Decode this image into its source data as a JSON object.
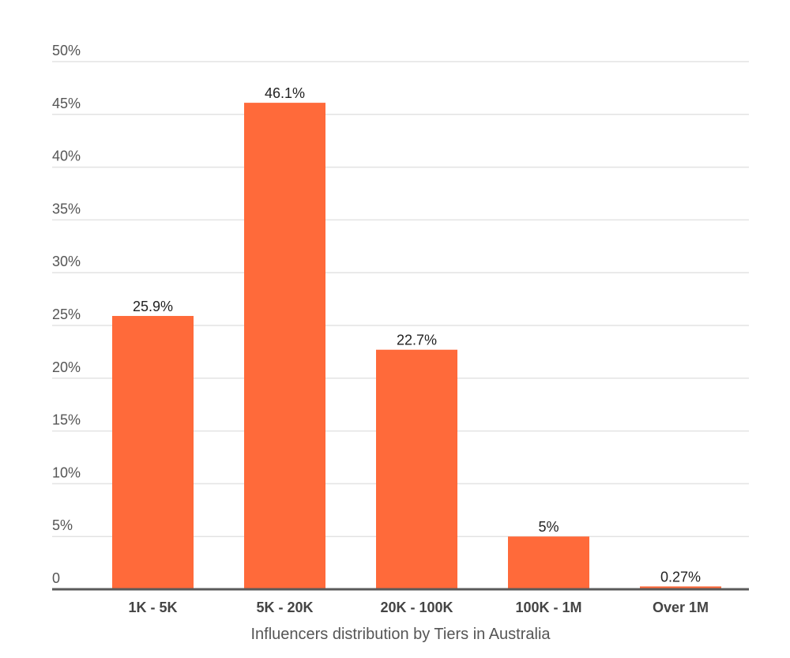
{
  "chart_data": {
    "type": "bar",
    "categories": [
      "1K - 5K",
      "5K - 20K",
      "20K - 100K",
      "100K - 1M",
      "Over 1M"
    ],
    "values": [
      25.9,
      46.1,
      22.7,
      5,
      0.27
    ],
    "data_labels": [
      "25.9%",
      "46.1%",
      "22.7%",
      "5%",
      "0.27%"
    ],
    "title": "",
    "xlabel": "Influencers distribution by Tiers in Australia",
    "ylabel": "",
    "ylim": [
      0,
      50
    ],
    "yticks": [
      0,
      5,
      10,
      15,
      20,
      25,
      30,
      35,
      40,
      45,
      50
    ],
    "ytick_labels": [
      "0",
      "5%",
      "10%",
      "15%",
      "20%",
      "25%",
      "30%",
      "35%",
      "40%",
      "45%",
      "50%"
    ],
    "grid": true,
    "legend": "none",
    "bar_color": "#ff6a3a"
  }
}
